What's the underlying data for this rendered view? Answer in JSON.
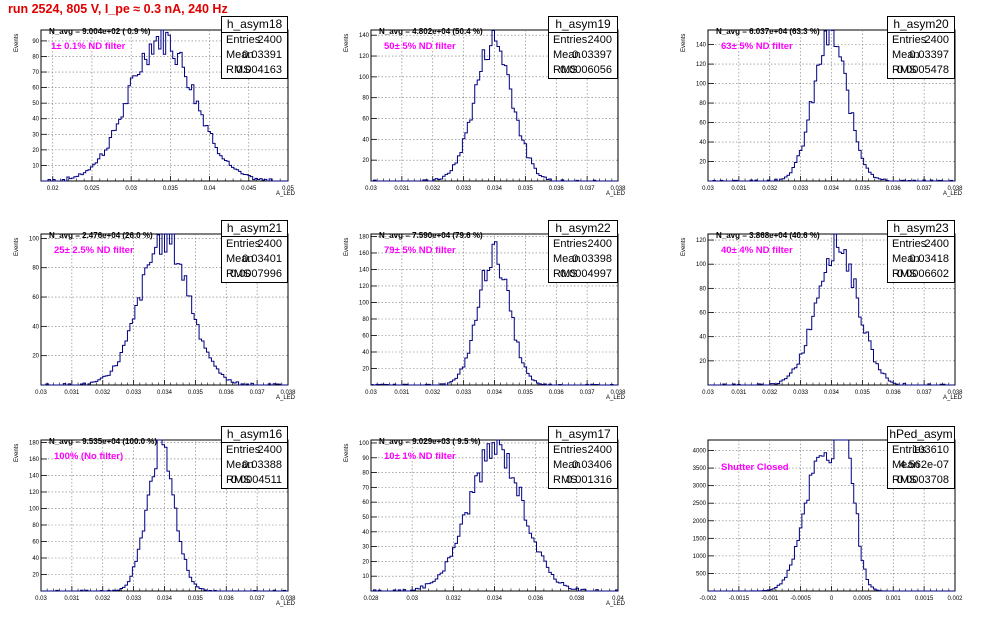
{
  "title": "run 2524,   805 V, I_pe ≈ 0.3 nA, 240 Hz",
  "colors": {
    "title": "#e00000",
    "annotation": "#ff00ff",
    "histogram": "#000080"
  },
  "chart_data": [
    {
      "type": "bar",
      "name": "h_asym18",
      "entries": "2400",
      "mean": "0.03391",
      "rms": "0.004163",
      "n_avg": "N_avg = 9.004e+02 ( 0.9 %)",
      "annotation": "1± 0.1% ND filter",
      "xlabel": "A_LED",
      "ylabel": "Events",
      "xlim": [
        0.0185,
        0.05
      ],
      "ylim": [
        0,
        97
      ],
      "xticks": [
        0.02,
        0.025,
        0.03,
        0.035,
        0.04,
        0.045,
        0.05
      ],
      "xtick_labels": [
        "0.02",
        "0.025",
        "0.03",
        "0.035",
        "0.04",
        "0.045",
        "0.05"
      ],
      "yticks": [
        10,
        20,
        30,
        40,
        50,
        60,
        70,
        80,
        90
      ],
      "ytick_labels": [
        "10",
        "20",
        "30",
        "40",
        "50",
        "60",
        "70",
        "80",
        "90"
      ],
      "bin_width": 0.0003,
      "mean_value": 0.03391,
      "sigma": 0.004163,
      "peak": 92
    },
    {
      "type": "bar",
      "name": "h_asym19",
      "entries": "2400",
      "mean": "0.03397",
      "rms": "0.0006056",
      "n_avg": "N_avg = 4.802e+04 (50.4 %)",
      "annotation": "50± 5% ND filter",
      "xlabel": "A_LED",
      "ylabel": "Events",
      "xlim": [
        0.03,
        0.038
      ],
      "ylim": [
        0,
        145
      ],
      "xticks": [
        0.03,
        0.031,
        0.032,
        0.033,
        0.034,
        0.035,
        0.036,
        0.037,
        0.038
      ],
      "xtick_labels": [
        "0.03",
        "0.031",
        "0.032",
        "0.033",
        "0.034",
        "0.035",
        "0.036",
        "0.037",
        "0.038"
      ],
      "yticks": [
        20,
        40,
        60,
        80,
        100,
        120,
        140
      ],
      "ytick_labels": [
        "20",
        "40",
        "60",
        "80",
        "100",
        "120",
        "140"
      ],
      "bin_width": 8e-05,
      "mean_value": 0.03397,
      "sigma": 0.0006056,
      "peak": 135
    },
    {
      "type": "bar",
      "name": "h_asym20",
      "entries": "2400",
      "mean": "0.03397",
      "rms": "0.0005478",
      "n_avg": "N_avg = 6.037e+04 (63.3 %)",
      "annotation": "63± 5% ND filter",
      "xlabel": "A_LED",
      "ylabel": "Events",
      "xlim": [
        0.03,
        0.038
      ],
      "ylim": [
        0,
        155
      ],
      "xticks": [
        0.03,
        0.031,
        0.032,
        0.033,
        0.034,
        0.035,
        0.036,
        0.037,
        0.038
      ],
      "xtick_labels": [
        "0.03",
        "0.031",
        "0.032",
        "0.033",
        "0.034",
        "0.035",
        "0.036",
        "0.037",
        "0.038"
      ],
      "yticks": [
        20,
        40,
        60,
        80,
        100,
        120,
        140
      ],
      "ytick_labels": [
        "20",
        "40",
        "60",
        "80",
        "100",
        "120",
        "140"
      ],
      "bin_width": 8e-05,
      "mean_value": 0.03397,
      "sigma": 0.0005478,
      "peak": 148
    },
    {
      "type": "bar",
      "name": "h_asym21",
      "entries": "2400",
      "mean": "0.03401",
      "rms": "0.0007996",
      "n_avg": "N_avg = 2.476e+04 (26.0 %)",
      "annotation": "25± 2.5% ND filter",
      "xlabel": "A_LED",
      "ylabel": "Events",
      "xlim": [
        0.03,
        0.038
      ],
      "ylim": [
        0,
        103
      ],
      "xticks": [
        0.03,
        0.031,
        0.032,
        0.033,
        0.034,
        0.035,
        0.036,
        0.037,
        0.038
      ],
      "xtick_labels": [
        "0.03",
        "0.031",
        "0.032",
        "0.033",
        "0.034",
        "0.035",
        "0.036",
        "0.037",
        "0.038"
      ],
      "yticks": [
        20,
        40,
        60,
        80,
        100
      ],
      "ytick_labels": [
        "20",
        "40",
        "60",
        "80",
        "100"
      ],
      "bin_width": 8e-05,
      "mean_value": 0.03401,
      "sigma": 0.0007996,
      "peak": 100
    },
    {
      "type": "bar",
      "name": "h_asym22",
      "entries": "2400",
      "mean": "0.03398",
      "rms": "0.0004997",
      "n_avg": "N_avg = 7.590e+04 (79.6 %)",
      "annotation": "79± 5% ND filter",
      "xlabel": "A_LED",
      "ylabel": "Events",
      "xlim": [
        0.03,
        0.038
      ],
      "ylim": [
        0,
        183
      ],
      "xticks": [
        0.03,
        0.031,
        0.032,
        0.033,
        0.034,
        0.035,
        0.036,
        0.037,
        0.038
      ],
      "xtick_labels": [
        "0.03",
        "0.031",
        "0.032",
        "0.033",
        "0.034",
        "0.035",
        "0.036",
        "0.037",
        "0.038"
      ],
      "yticks": [
        20,
        40,
        60,
        80,
        100,
        120,
        140,
        160,
        180
      ],
      "ytick_labels": [
        "20",
        "40",
        "60",
        "80",
        "100",
        "120",
        "140",
        "160",
        "180"
      ],
      "bin_width": 8e-05,
      "mean_value": 0.03398,
      "sigma": 0.0004997,
      "peak": 160
    },
    {
      "type": "bar",
      "name": "h_asym23",
      "entries": "2400",
      "mean": "0.03418",
      "rms": "0.0006602",
      "n_avg": "N_avg = 3.868e+04 (40.6 %)",
      "annotation": "40± 4% ND filter",
      "xlabel": "A_LED",
      "ylabel": "Events",
      "xlim": [
        0.03,
        0.038
      ],
      "ylim": [
        0,
        125
      ],
      "xticks": [
        0.03,
        0.031,
        0.032,
        0.033,
        0.034,
        0.035,
        0.036,
        0.037,
        0.038
      ],
      "xtick_labels": [
        "0.03",
        "0.031",
        "0.032",
        "0.033",
        "0.034",
        "0.035",
        "0.036",
        "0.037",
        "0.038"
      ],
      "yticks": [
        20,
        40,
        60,
        80,
        100,
        120
      ],
      "ytick_labels": [
        "20",
        "40",
        "60",
        "80",
        "100",
        "120"
      ],
      "bin_width": 8e-05,
      "mean_value": 0.03418,
      "sigma": 0.0006602,
      "peak": 118
    },
    {
      "type": "bar",
      "name": "h_asym16",
      "entries": "2400",
      "mean": "0.03388",
      "rms": "0.0004511",
      "n_avg": "N_avg = 9.535e+04 (100.0 %)",
      "annotation": "100% (No filter)",
      "xlabel": "A_LED",
      "ylabel": "Events",
      "xlim": [
        0.03,
        0.038
      ],
      "ylim": [
        0,
        183
      ],
      "xticks": [
        0.03,
        0.031,
        0.032,
        0.033,
        0.034,
        0.035,
        0.036,
        0.037,
        0.038
      ],
      "xtick_labels": [
        "0.03",
        "0.031",
        "0.032",
        "0.033",
        "0.034",
        "0.035",
        "0.036",
        "0.037",
        "0.038"
      ],
      "yticks": [
        20,
        40,
        60,
        80,
        100,
        120,
        140,
        160,
        180
      ],
      "ytick_labels": [
        "20",
        "40",
        "60",
        "80",
        "100",
        "120",
        "140",
        "160",
        "180"
      ],
      "bin_width": 8e-05,
      "mean_value": 0.03388,
      "sigma": 0.0004511,
      "peak": 172
    },
    {
      "type": "bar",
      "name": "h_asym17",
      "entries": "2400",
      "mean": "0.03406",
      "rms": "0.001316",
      "n_avg": "N_avg = 9.029e+03 ( 9.5 %)",
      "annotation": "10± 1% ND filter",
      "xlabel": "A_LED",
      "ylabel": "Events",
      "xlim": [
        0.028,
        0.04
      ],
      "ylim": [
        0,
        102
      ],
      "xticks": [
        0.028,
        0.03,
        0.032,
        0.034,
        0.036,
        0.038,
        0.04
      ],
      "xtick_labels": [
        "0.028",
        "0.03",
        "0.032",
        "0.034",
        "0.036",
        "0.038",
        "0.04"
      ],
      "yticks": [
        10,
        20,
        30,
        40,
        50,
        60,
        70,
        80,
        90,
        100
      ],
      "ytick_labels": [
        "10",
        "20",
        "30",
        "40",
        "50",
        "60",
        "70",
        "80",
        "90",
        "100"
      ],
      "bin_width": 0.00012,
      "mean_value": 0.03406,
      "sigma": 0.001316,
      "peak": 96
    },
    {
      "type": "bar",
      "name": "hPed_asym",
      "entries": "103610",
      "mean": "4.562e-07",
      "rms": "0.0003708",
      "n_avg": "",
      "annotation": "Shutter Closed",
      "xlabel": "",
      "ylabel": "",
      "xlim": [
        -0.002,
        0.002
      ],
      "ylim": [
        0,
        4300
      ],
      "xticks": [
        -0.002,
        -0.0015,
        -0.001,
        -0.0005,
        0,
        0.0005,
        0.001,
        0.0015,
        0.002
      ],
      "xtick_labels": [
        "-0.002",
        "-0.0015",
        "-0.001",
        "-0.0005",
        "0",
        "0.0005",
        "0.001",
        "0.0015",
        "0.002"
      ],
      "yticks": [
        500,
        1000,
        1500,
        2000,
        2500,
        3000,
        3500,
        4000
      ],
      "ytick_labels": [
        "500",
        "1000",
        "1500",
        "2000",
        "2500",
        "3000",
        "3500",
        "4000"
      ],
      "bin_width": 4e-05,
      "bimodal": true,
      "peak": 4050
    }
  ]
}
